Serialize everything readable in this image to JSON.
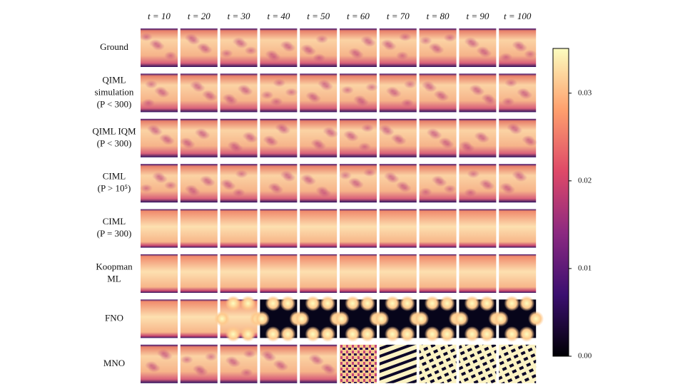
{
  "columns": [
    "t = 10",
    "t = 20",
    "t = 30",
    "t = 40",
    "t = 50",
    "t = 60",
    "t = 70",
    "t = 80",
    "t = 90",
    "t = 100"
  ],
  "rows": [
    {
      "label": [
        "Ground"
      ]
    },
    {
      "label": [
        "QIML",
        "simulation",
        "(P < 300)"
      ]
    },
    {
      "label": [
        "QIML IQM",
        "(P < 300)"
      ]
    },
    {
      "label": [
        "CIML",
        "(P > 10⁵)"
      ]
    },
    {
      "label": [
        "CIML",
        "(P = 300)"
      ]
    },
    {
      "label": [
        "Koopman",
        "ML"
      ]
    },
    {
      "label": [
        "FNO"
      ]
    },
    {
      "label": [
        "MNO"
      ]
    }
  ],
  "colorbar": {
    "lim": [
      0,
      0.0351
    ],
    "ticks": [
      {
        "value": 0,
        "label": "0.00"
      },
      0.01,
      0.02,
      0.03
    ]
  }
}
